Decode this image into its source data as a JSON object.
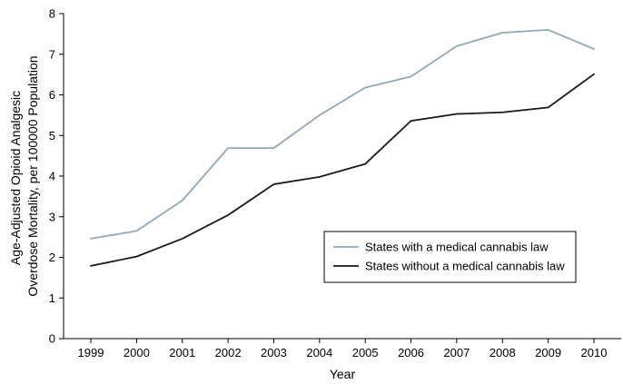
{
  "chart_data": {
    "type": "line",
    "title": "",
    "xlabel": "Year",
    "ylabel_lines": [
      "Age-Adjusted Opioid Analgesic",
      "Overdose Mortality, per 100000 Population"
    ],
    "x": [
      "1999",
      "2000",
      "2001",
      "2002",
      "2003",
      "2004",
      "2005",
      "2006",
      "2007",
      "2008",
      "2009",
      "2010"
    ],
    "ylim": [
      0,
      8
    ],
    "yticks": [
      "0",
      "1",
      "2",
      "3",
      "4",
      "5",
      "6",
      "7",
      "8"
    ],
    "grid": false,
    "legend_position": "lower-right",
    "series": [
      {
        "name": "States with a medical cannabis law",
        "color": "#8fa9b8",
        "values": [
          2.46,
          2.65,
          3.4,
          4.69,
          4.69,
          5.5,
          6.18,
          6.45,
          7.2,
          7.53,
          7.6,
          7.13
        ]
      },
      {
        "name": "States without a medical cannabis law",
        "color": "#1a1a1a",
        "values": [
          1.79,
          2.02,
          2.46,
          3.04,
          3.8,
          3.98,
          4.3,
          5.36,
          5.53,
          5.57,
          5.69,
          6.51
        ]
      }
    ]
  }
}
